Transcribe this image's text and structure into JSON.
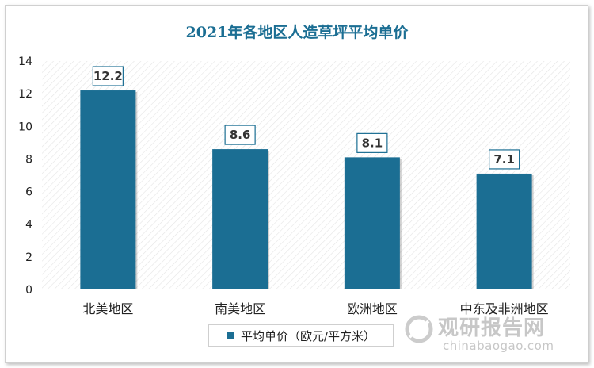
{
  "chart_data": {
    "type": "bar",
    "title": "2021年各地区人造草坪平均单价",
    "categories": [
      "北美地区",
      "南美地区",
      "欧洲地区",
      "中东及非洲地区"
    ],
    "series": [
      {
        "name": "平均单价（欧元/平方米）",
        "values": [
          12.2,
          8.6,
          8.1,
          7.1
        ]
      }
    ],
    "data_labels": [
      "12.2",
      "8.6",
      "8.1",
      "7.1"
    ],
    "yticks": [
      "0",
      "2",
      "4",
      "6",
      "8",
      "10",
      "12",
      "14"
    ],
    "ylim": [
      0,
      14
    ],
    "grid": false,
    "legend": "bottom",
    "colors": {
      "bar": "#1b6e93",
      "title": "#1b6e93"
    }
  },
  "watermark": {
    "cn": "观研报告网",
    "en": "chinabaogao.com"
  }
}
